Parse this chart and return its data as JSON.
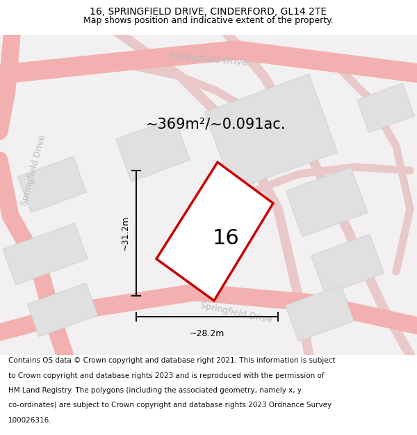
{
  "title": "16, SPRINGFIELD DRIVE, CINDERFORD, GL14 2TE",
  "subtitle": "Map shows position and indicative extent of the property.",
  "footer": "Contains OS data © Crown copyright and database right 2021. This information is subject to Crown copyright and database rights 2023 and is reproduced with the permission of HM Land Registry. The polygons (including the associated geometry, namely x, y co-ordinates) are subject to Crown copyright and database rights 2023 Ordnance Survey 100026316.",
  "area_text": "~369m²/~0.091ac.",
  "property_number": "16",
  "dim_vertical": "~31.2m",
  "dim_horizontal": "~28.2m",
  "road_color": "#f2b0b0",
  "road_color2": "#e8c8c8",
  "block_color": "#e0e0e0",
  "block_edge": "#cccccc",
  "plot_color": "#cc0000",
  "text_gray": "#bbbbbb",
  "title_fontsize": 10,
  "subtitle_fontsize": 9,
  "footer_fontsize": 7.5,
  "area_fontsize": 15,
  "propnum_fontsize": 22,
  "dim_fontsize": 9
}
